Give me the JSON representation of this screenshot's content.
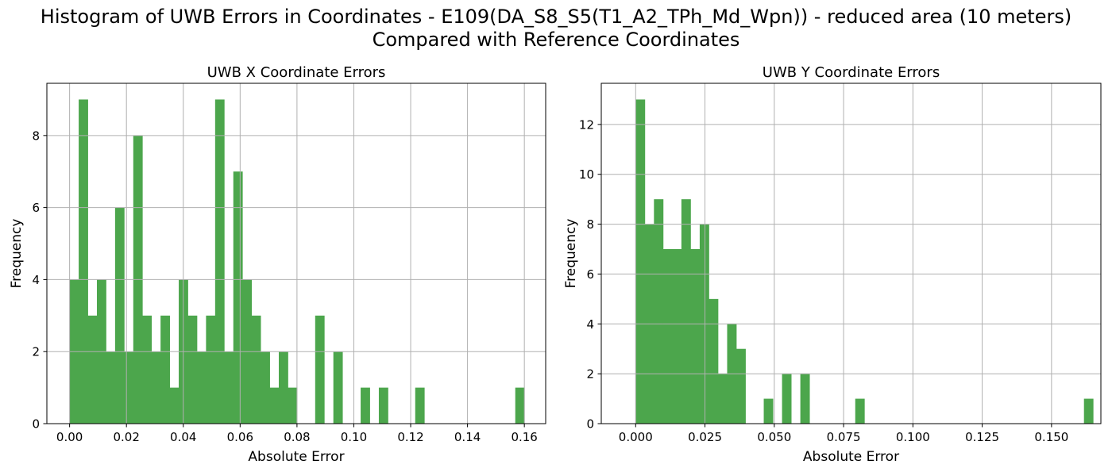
{
  "figure": {
    "title_line1": "Histogram of UWB Errors in Coordinates - E109(DA_S8_S5(T1_A2_TPh_Md_Wpn)) - reduced area (10 meters)",
    "title_line2": "Compared with Reference Coordinates",
    "bar_color": "#4ca64c",
    "grid_color": "#b0b0b0"
  },
  "chart_data": [
    {
      "type": "bar",
      "title": "UWB X Coordinate Errors",
      "xlabel": "Absolute Error",
      "ylabel": "Frequency",
      "xlim": [
        -0.008,
        0.1675
      ],
      "ylim": [
        0,
        9.45
      ],
      "xticks": [
        0.0,
        0.02,
        0.04,
        0.06,
        0.08,
        0.1,
        0.12,
        0.14,
        0.16
      ],
      "xtick_labels": [
        "0.00",
        "0.02",
        "0.04",
        "0.06",
        "0.08",
        "0.10",
        "0.12",
        "0.14",
        "0.16"
      ],
      "yticks": [
        0,
        2,
        4,
        6,
        8
      ],
      "ytick_labels": [
        "0",
        "2",
        "4",
        "6",
        "8"
      ],
      "grid": true,
      "bin_start": 0.0,
      "bin_width": 0.0032,
      "values": [
        4,
        9,
        3,
        4,
        2,
        6,
        2,
        8,
        3,
        2,
        3,
        1,
        4,
        3,
        2,
        3,
        9,
        2,
        7,
        4,
        3,
        2,
        1,
        2,
        1,
        0,
        0,
        3,
        0,
        2,
        0,
        0,
        1,
        0,
        1,
        0,
        0,
        0,
        1,
        0,
        0,
        0,
        0,
        0,
        0,
        0,
        0,
        0,
        0,
        1
      ]
    },
    {
      "type": "bar",
      "title": "UWB Y Coordinate Errors",
      "xlabel": "Absolute Error",
      "ylabel": "Frequency",
      "xlim": [
        -0.0124,
        0.1678
      ],
      "ylim": [
        0,
        13.65
      ],
      "xticks": [
        0.0,
        0.025,
        0.05,
        0.075,
        0.1,
        0.125,
        0.15
      ],
      "xtick_labels": [
        "0.000",
        "0.025",
        "0.050",
        "0.075",
        "0.100",
        "0.125",
        "0.150"
      ],
      "yticks": [
        0,
        2,
        4,
        6,
        8,
        10,
        12
      ],
      "ytick_labels": [
        "0",
        "2",
        "4",
        "6",
        "8",
        "10",
        "12"
      ],
      "grid": true,
      "bin_start": 0.0,
      "bin_width": 0.0033,
      "values": [
        13,
        8,
        9,
        7,
        7,
        9,
        7,
        8,
        5,
        2,
        4,
        3,
        0,
        0,
        1,
        0,
        2,
        0,
        2,
        0,
        0,
        0,
        0,
        0,
        1,
        0,
        0,
        0,
        0,
        0,
        0,
        0,
        0,
        0,
        0,
        0,
        0,
        0,
        0,
        0,
        0,
        0,
        0,
        0,
        0,
        0,
        0,
        0,
        0,
        1
      ]
    }
  ]
}
